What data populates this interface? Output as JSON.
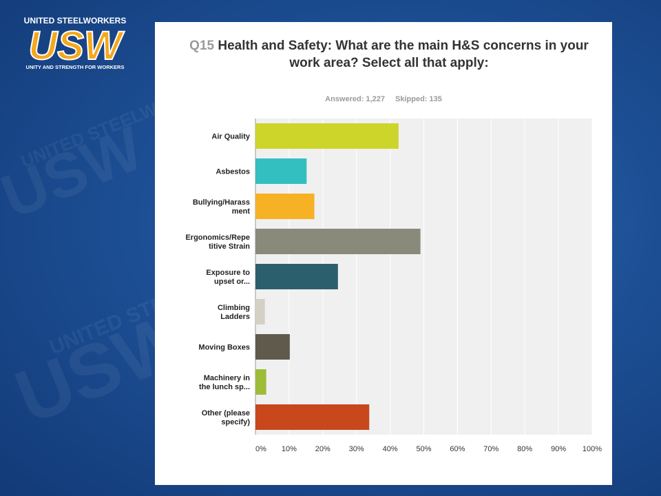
{
  "logo": {
    "top_text": "UNITED STEELWORKERS",
    "mark": "USW",
    "tagline": "UNITY AND STRENGTH FOR WORKERS",
    "colors": {
      "gold": "#f4a81d",
      "blue": "#1d4f95",
      "white": "#ffffff"
    }
  },
  "background": {
    "watermark_text": "UNITED STEELWORKERS",
    "watermark_mark": "USW"
  },
  "question": {
    "number": "Q15",
    "text": "Health and Safety: What are the main H&S concerns in your work area? Select all that apply:"
  },
  "stats": {
    "answered": "Answered: 1,227",
    "skipped": "Skipped: 135"
  },
  "chart_data": {
    "type": "bar",
    "orientation": "horizontal",
    "categories": [
      [
        "Air Quality"
      ],
      [
        "Asbestos"
      ],
      [
        "Bullying/Harass",
        "ment"
      ],
      [
        "Ergonomics/Repe",
        "titive Strain"
      ],
      [
        "Exposure to",
        "upset or..."
      ],
      [
        "Climbing",
        "Ladders"
      ],
      [
        "Moving Boxes"
      ],
      [
        "Machinery in",
        "the lunch sp..."
      ],
      [
        "Other (please",
        "specify)"
      ]
    ],
    "values": [
      42.5,
      15.2,
      17.5,
      49.0,
      24.5,
      2.8,
      10.2,
      3.2,
      33.8
    ],
    "colors": [
      "#cdd52a",
      "#33bfbf",
      "#f7b125",
      "#8a8a7b",
      "#2c5f6d",
      "#d4d0c4",
      "#5f5a4c",
      "#9dbc3a",
      "#c8471d"
    ],
    "xlim": [
      0,
      100
    ],
    "xticks": [
      "0%",
      "10%",
      "20%",
      "30%",
      "40%",
      "50%",
      "60%",
      "70%",
      "80%",
      "90%",
      "100%"
    ],
    "grid": true,
    "plot_background": "#f0f0f0"
  }
}
